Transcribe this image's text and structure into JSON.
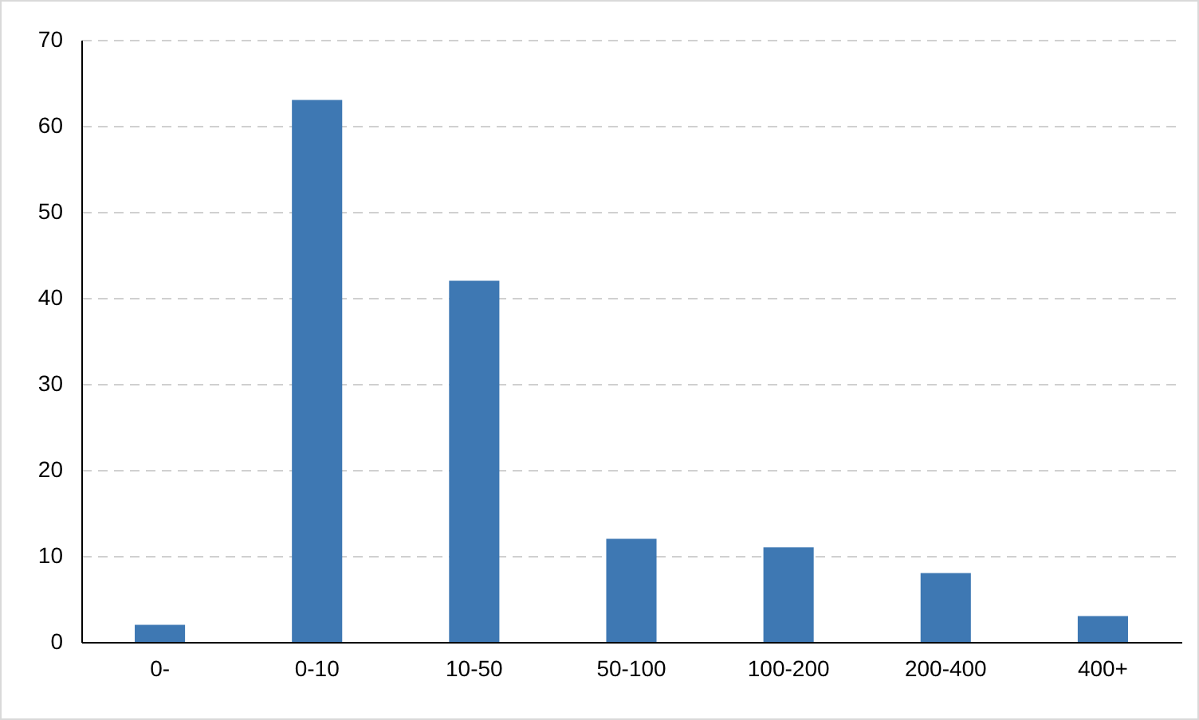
{
  "chart_data": {
    "type": "bar",
    "categories": [
      "0-",
      "0-10",
      "10-50",
      "50-100",
      "100-200",
      "200-400",
      "400+"
    ],
    "values": [
      2,
      63,
      42,
      12,
      11,
      8,
      3
    ],
    "color": "#3e78b3",
    "ylim": [
      0,
      70
    ],
    "yticks": [
      0,
      10,
      20,
      30,
      40,
      50,
      60,
      70
    ],
    "grid": "y"
  }
}
